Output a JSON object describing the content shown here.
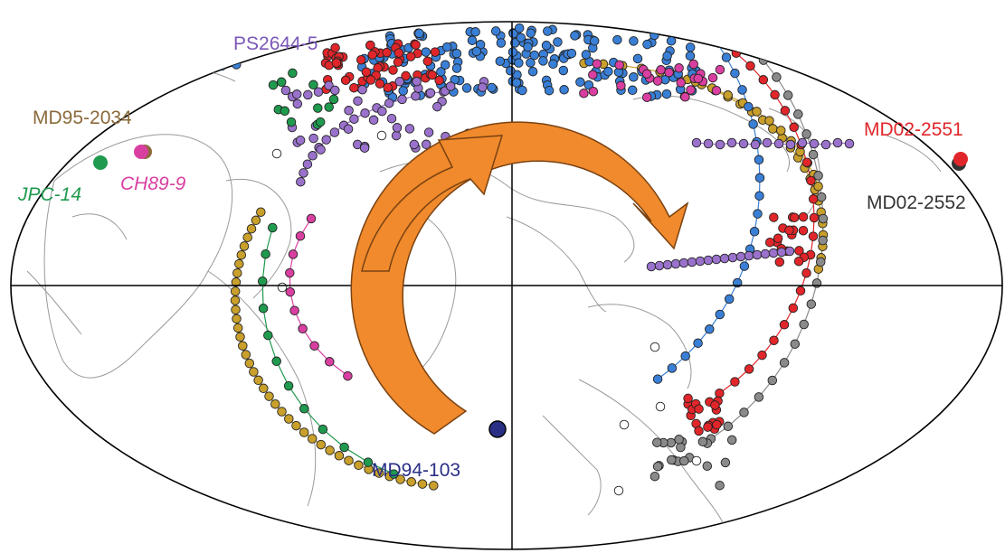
{
  "map": {
    "projection": "Mollweide equal-area",
    "arrow_color": "#f08a2c",
    "arrow_direction": "clockwise"
  },
  "sites": {
    "ps2644": {
      "text": "PS2644-5",
      "color": "#7b57b8"
    },
    "md95": {
      "text": "MD95-2034",
      "color": "#8a6a3a"
    },
    "jpc14": {
      "text": "JPC-14",
      "color": "#1f9a4e"
    },
    "ch89": {
      "text": "CH89-9",
      "color": "#d93fa0"
    },
    "md02_2551": {
      "text": "MD02-2551",
      "color": "#e0262a"
    },
    "md02_2552": {
      "text": "MD02-2552",
      "color": "#333333"
    },
    "md94": {
      "text": "MD94-103",
      "color": "#2a2f86"
    }
  },
  "legend_colors": {
    "blue": "#3a7fd6",
    "gold": "#c9a02c",
    "red": "#e0262a",
    "grey": "#8a8a8a",
    "green": "#1f9a4e",
    "purple": "#9a72cc",
    "magenta": "#d93fa0",
    "white": "#ffffff"
  }
}
